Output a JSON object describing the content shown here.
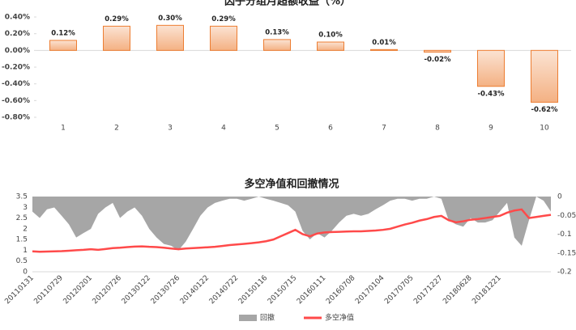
{
  "chart_data": [
    {
      "type": "bar",
      "title": "因子分组月超额收益（%）",
      "categories": [
        "1",
        "2",
        "3",
        "4",
        "5",
        "6",
        "7",
        "8",
        "9",
        "10"
      ],
      "values": [
        0.12,
        0.29,
        0.3,
        0.29,
        0.13,
        0.1,
        0.01,
        -0.02,
        -0.43,
        -0.62
      ],
      "value_labels": [
        "0.12%",
        "0.29%",
        "0.30%",
        "0.29%",
        "0.13%",
        "0.10%",
        "0.01%",
        "-0.02%",
        "-0.43%",
        "-0.62%"
      ],
      "color": "#f4b183",
      "edge_color": "#ed7d31",
      "ylim": [
        -0.8,
        0.4
      ],
      "yticks": [
        {
          "value": -0.8,
          "label": "-0.80%"
        },
        {
          "value": -0.6,
          "label": "-0.60%"
        },
        {
          "value": -0.4,
          "label": "-0.40%"
        },
        {
          "value": -0.2,
          "label": "-0.20%"
        },
        {
          "value": 0,
          "label": "0.00%"
        },
        {
          "value": 0.2,
          "label": "0.20%"
        },
        {
          "value": 0.4,
          "label": "0.40%"
        }
      ]
    },
    {
      "type": "combo",
      "title": "多空净值和回撤情况",
      "categories": [
        "20110131",
        null,
        null,
        null,
        "20110729",
        null,
        null,
        null,
        "20120201",
        null,
        null,
        null,
        "20120726",
        null,
        null,
        null,
        "20130122",
        null,
        null,
        null,
        "20130726",
        null,
        null,
        null,
        "20140122",
        null,
        null,
        null,
        "20140722",
        null,
        null,
        null,
        "20150116",
        null,
        null,
        null,
        "20150715",
        null,
        null,
        null,
        "20160111",
        null,
        null,
        null,
        "20160708",
        null,
        null,
        null,
        "20170104",
        null,
        null,
        null,
        "20170705",
        null,
        null,
        null,
        "20171227",
        null,
        null,
        null,
        "20180628",
        null,
        null,
        null,
        "20181221",
        null,
        null,
        null,
        null,
        null,
        null,
        null
      ],
      "series": [
        {
          "name": "回撤",
          "type": "area",
          "axis": "y2",
          "color": "#a6a6a6",
          "values": [
            -0.04,
            -0.057,
            -0.034,
            -0.029,
            -0.051,
            -0.074,
            -0.109,
            -0.097,
            -0.086,
            -0.046,
            -0.029,
            -0.017,
            -0.057,
            -0.04,
            -0.029,
            -0.051,
            -0.086,
            -0.109,
            -0.126,
            -0.131,
            -0.143,
            -0.12,
            -0.086,
            -0.051,
            -0.029,
            -0.017,
            -0.011,
            -0.006,
            -0.006,
            -0.011,
            -0.006,
            0,
            -0.006,
            -0.011,
            -0.017,
            -0.023,
            -0.04,
            -0.091,
            -0.114,
            -0.097,
            -0.109,
            -0.091,
            -0.069,
            -0.051,
            -0.046,
            -0.051,
            -0.046,
            -0.034,
            -0.023,
            -0.011,
            -0.006,
            -0.006,
            -0.011,
            -0.006,
            -0.006,
            0,
            -0.006,
            -0.063,
            -0.074,
            -0.08,
            -0.057,
            -0.069,
            -0.069,
            -0.063,
            -0.04,
            -0.017,
            -0.109,
            -0.131,
            -0.063,
            0,
            -0.011,
            -0.04
          ]
        },
        {
          "name": "多空净值",
          "type": "line",
          "color": "#ff4a4a",
          "values": [
            0.95,
            0.93,
            0.94,
            0.95,
            0.96,
            0.98,
            1.0,
            1.02,
            1.05,
            1.02,
            1.06,
            1.1,
            1.12,
            1.15,
            1.17,
            1.18,
            1.16,
            1.15,
            1.12,
            1.08,
            1.05,
            1.08,
            1.1,
            1.12,
            1.14,
            1.16,
            1.2,
            1.24,
            1.27,
            1.3,
            1.33,
            1.37,
            1.42,
            1.5,
            1.65,
            1.8,
            1.95,
            1.75,
            1.65,
            1.78,
            1.83,
            1.85,
            1.86,
            1.87,
            1.88,
            1.88,
            1.9,
            1.92,
            1.95,
            2.0,
            2.1,
            2.2,
            2.28,
            2.38,
            2.45,
            2.55,
            2.6,
            2.4,
            2.3,
            2.35,
            2.42,
            2.45,
            2.5,
            2.55,
            2.6,
            2.75,
            2.85,
            2.9,
            2.5,
            2.55,
            2.6,
            2.65
          ]
        }
      ],
      "ylim": [
        0,
        3.5
      ],
      "yticks": [
        0,
        0.5,
        1,
        1.5,
        2,
        2.5,
        3,
        3.5
      ],
      "y2lim": [
        -0.2,
        0
      ],
      "y2ticks": [
        -0.2,
        -0.15,
        -0.1,
        -0.05,
        0
      ],
      "legend": "bottom"
    }
  ]
}
